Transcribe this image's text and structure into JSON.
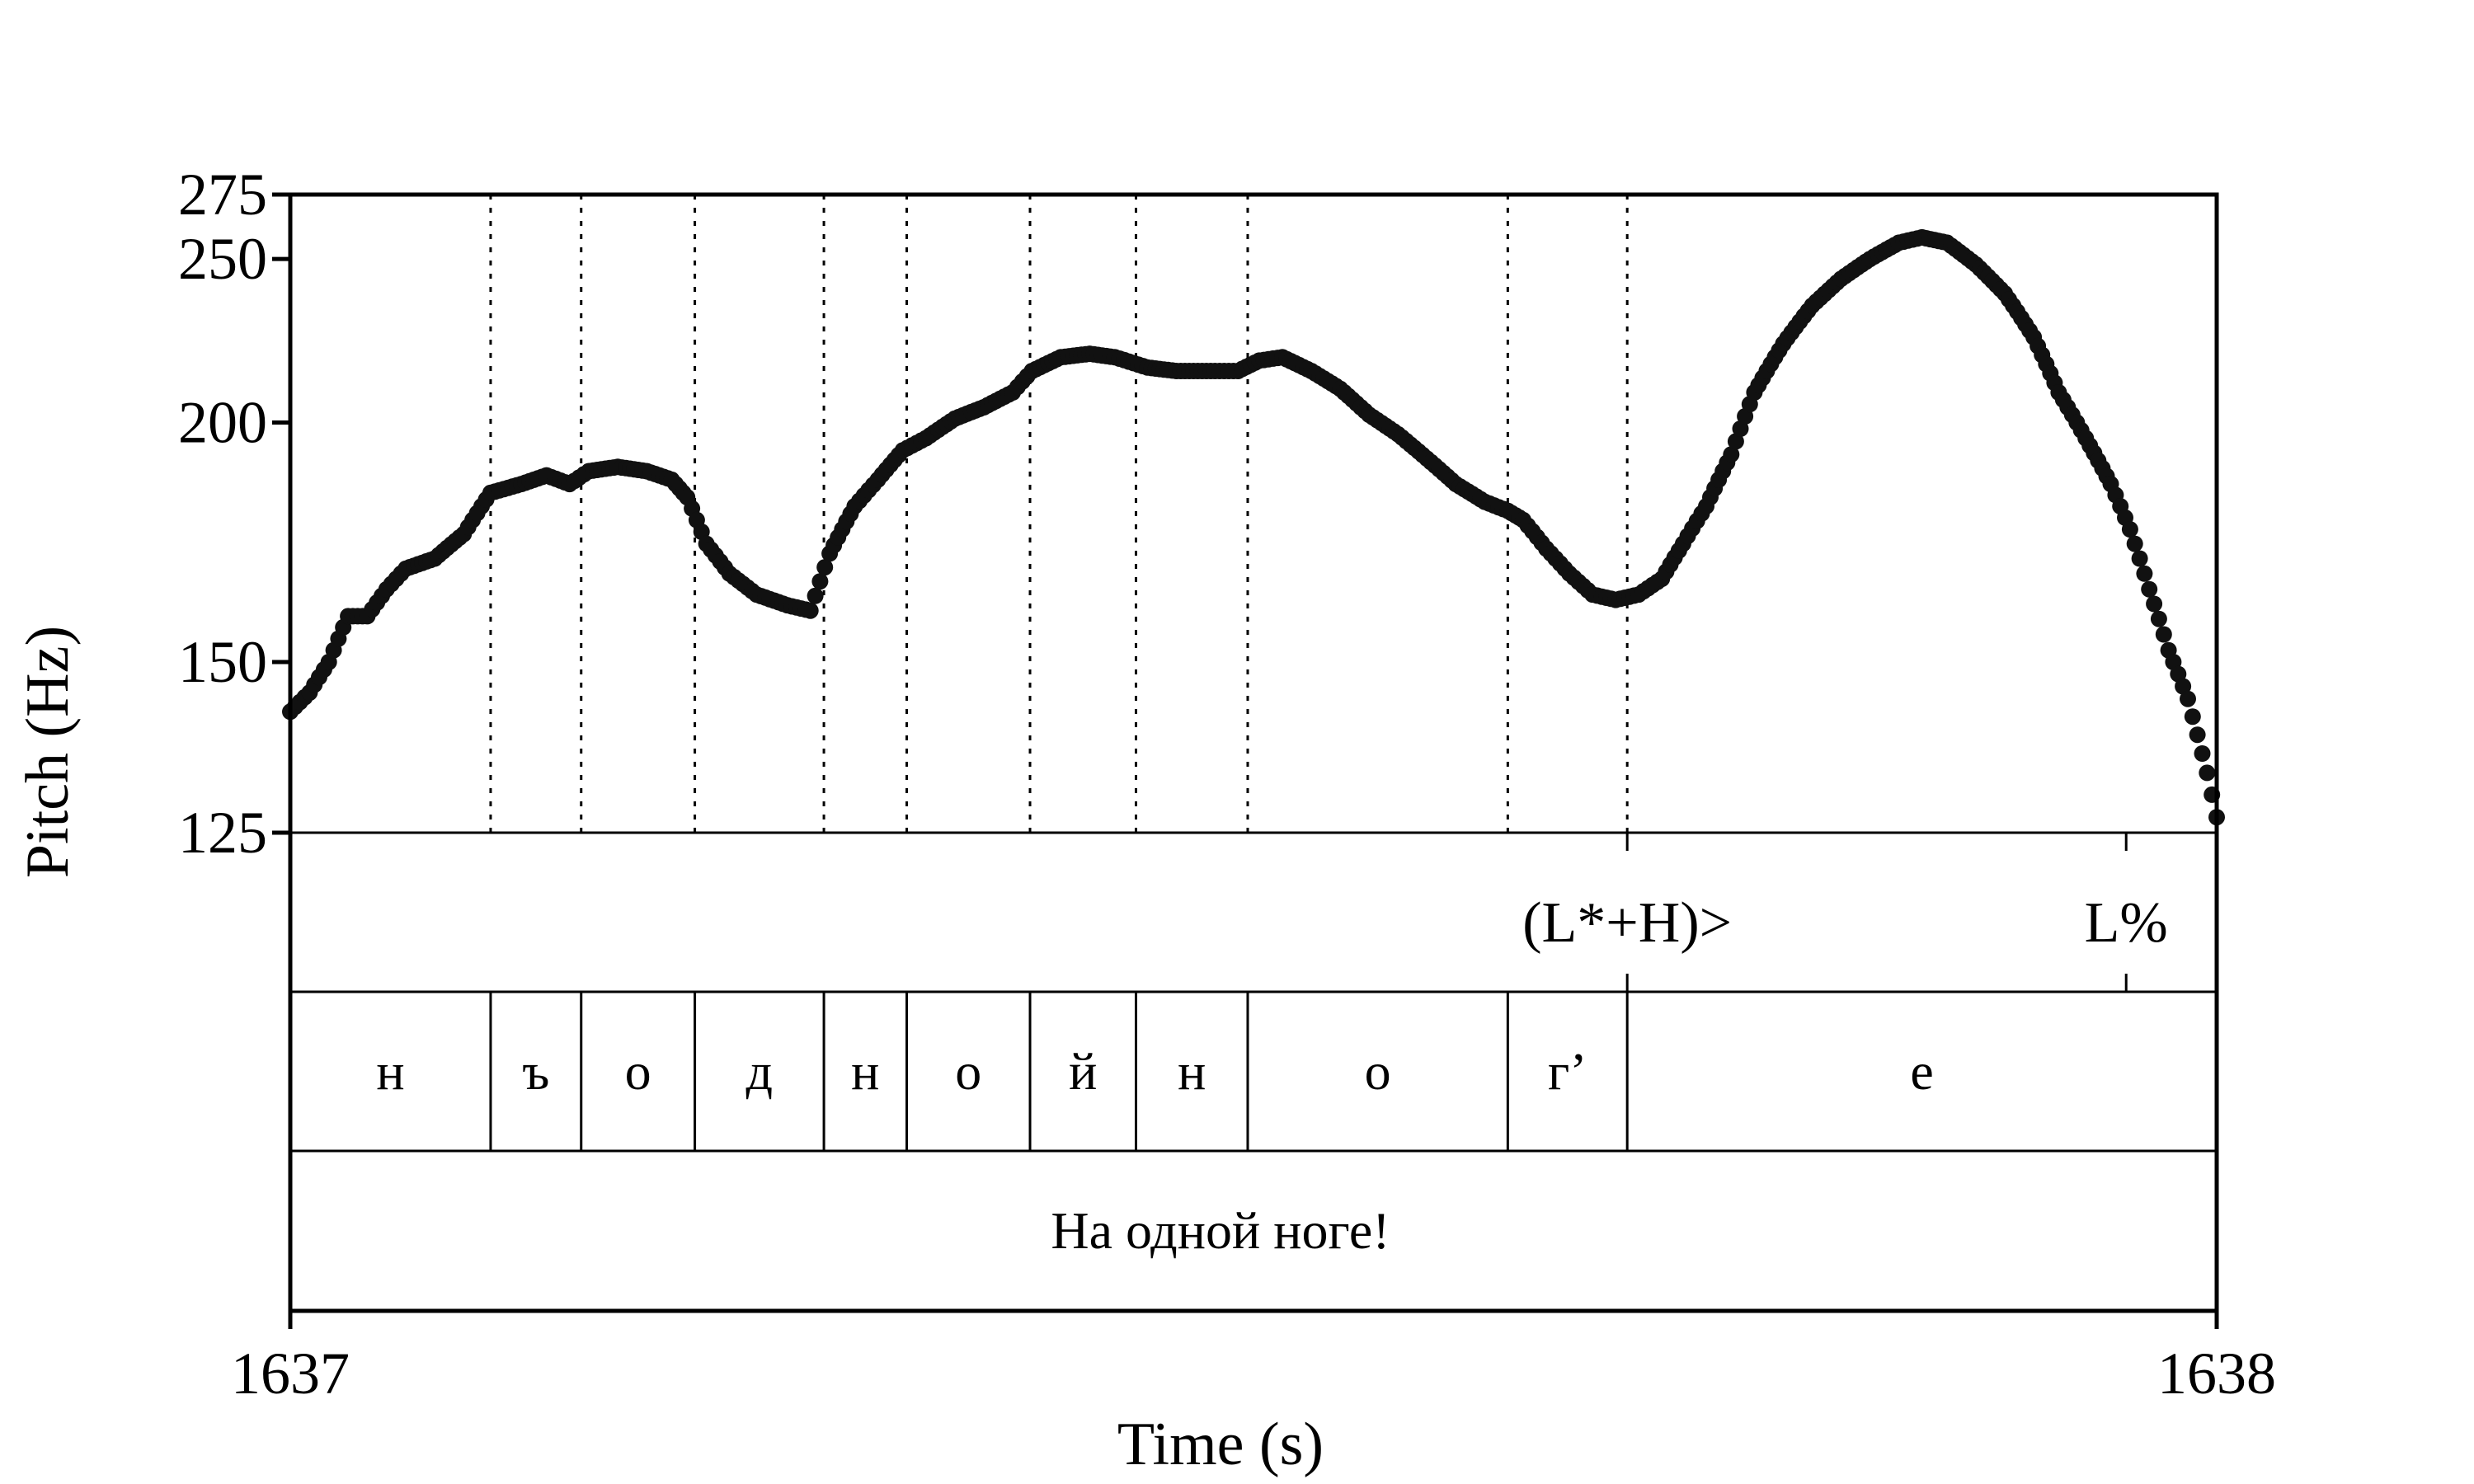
{
  "chart_data": {
    "type": "scatter",
    "ylabel": "Pitch (Hz)",
    "xlabel": "Time (s)",
    "xlim": [
      1637,
      1638
    ],
    "ylim": [
      125,
      275
    ],
    "yticks": [
      125,
      150,
      200,
      250,
      275
    ],
    "xticks": [
      1637,
      1638
    ],
    "xtick_labels": [
      "1637",
      "1638"
    ],
    "grid": "dotted vertical lines at segment boundaries",
    "segment_boundaries": [
      1637.104,
      1637.151,
      1637.21,
      1637.277,
      1637.32,
      1637.384,
      1637.439,
      1637.497,
      1637.632,
      1637.694
    ],
    "tones": [
      {
        "time": 1637.694,
        "label": "(L*+H)>"
      },
      {
        "time": 1637.953,
        "label": "L%"
      }
    ],
    "segments": [
      {
        "start": 1637.0,
        "end": 1637.104,
        "label": "н"
      },
      {
        "start": 1637.104,
        "end": 1637.151,
        "label": "ъ"
      },
      {
        "start": 1637.151,
        "end": 1637.21,
        "label": "о"
      },
      {
        "start": 1637.21,
        "end": 1637.277,
        "label": "д"
      },
      {
        "start": 1637.277,
        "end": 1637.32,
        "label": "н"
      },
      {
        "start": 1637.32,
        "end": 1637.384,
        "label": "о"
      },
      {
        "start": 1637.384,
        "end": 1637.439,
        "label": "й"
      },
      {
        "start": 1637.439,
        "end": 1637.497,
        "label": "н"
      },
      {
        "start": 1637.497,
        "end": 1637.632,
        "label": "о"
      },
      {
        "start": 1637.632,
        "end": 1637.694,
        "label": "г’"
      },
      {
        "start": 1637.694,
        "end": 1638.0,
        "label": "е"
      }
    ],
    "utterance": "На одной ноге!",
    "pitch_anchors": [
      [
        1637.0,
        142
      ],
      [
        1637.01,
        145
      ],
      [
        1637.02,
        150
      ],
      [
        1637.03,
        158
      ],
      [
        1637.04,
        158
      ],
      [
        1637.05,
        163
      ],
      [
        1637.06,
        167
      ],
      [
        1637.075,
        169
      ],
      [
        1637.09,
        174
      ],
      [
        1637.104,
        183
      ],
      [
        1637.12,
        185
      ],
      [
        1637.133,
        187
      ],
      [
        1637.145,
        185
      ],
      [
        1637.155,
        188
      ],
      [
        1637.17,
        189
      ],
      [
        1637.185,
        188
      ],
      [
        1637.198,
        186
      ],
      [
        1637.206,
        182
      ],
      [
        1637.216,
        172
      ],
      [
        1637.228,
        166
      ],
      [
        1637.242,
        162
      ],
      [
        1637.258,
        160
      ],
      [
        1637.27,
        159
      ],
      [
        1637.28,
        170
      ],
      [
        1637.293,
        180
      ],
      [
        1637.305,
        186
      ],
      [
        1637.318,
        193
      ],
      [
        1637.33,
        196
      ],
      [
        1637.345,
        201
      ],
      [
        1637.36,
        204
      ],
      [
        1637.375,
        208
      ],
      [
        1637.385,
        214
      ],
      [
        1637.4,
        218
      ],
      [
        1637.415,
        219
      ],
      [
        1637.428,
        218
      ],
      [
        1637.445,
        215
      ],
      [
        1637.46,
        214
      ],
      [
        1637.48,
        214
      ],
      [
        1637.492,
        214
      ],
      [
        1637.503,
        217
      ],
      [
        1637.515,
        218
      ],
      [
        1637.53,
        214
      ],
      [
        1637.545,
        209
      ],
      [
        1637.56,
        202
      ],
      [
        1637.575,
        197
      ],
      [
        1637.59,
        191
      ],
      [
        1637.605,
        185
      ],
      [
        1637.62,
        181
      ],
      [
        1637.632,
        179
      ],
      [
        1637.64,
        177
      ],
      [
        1637.652,
        171
      ],
      [
        1637.664,
        166
      ],
      [
        1637.676,
        162
      ],
      [
        1637.688,
        161
      ],
      [
        1637.7,
        162
      ],
      [
        1637.712,
        165
      ],
      [
        1637.723,
        172
      ],
      [
        1637.735,
        180
      ],
      [
        1637.748,
        192
      ],
      [
        1637.76,
        208
      ],
      [
        1637.775,
        222
      ],
      [
        1637.79,
        234
      ],
      [
        1637.805,
        243
      ],
      [
        1637.82,
        250
      ],
      [
        1637.835,
        256
      ],
      [
        1637.847,
        258
      ],
      [
        1637.86,
        256
      ],
      [
        1637.875,
        248
      ],
      [
        1637.89,
        238
      ],
      [
        1637.905,
        224
      ],
      [
        1637.918,
        208
      ],
      [
        1637.932,
        196
      ],
      [
        1637.945,
        185
      ],
      [
        1637.955,
        175
      ],
      [
        1637.965,
        163
      ],
      [
        1637.975,
        152
      ],
      [
        1637.985,
        144
      ],
      [
        1637.995,
        133
      ],
      [
        1638.0,
        127
      ]
    ],
    "series_color": "#111111"
  }
}
